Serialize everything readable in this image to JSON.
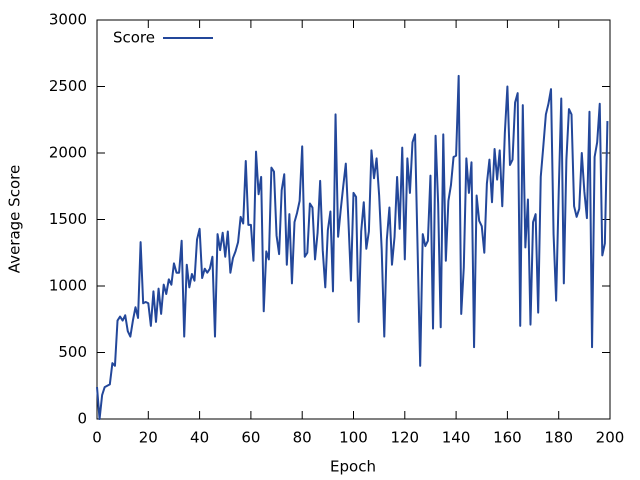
{
  "chart_data": {
    "type": "line",
    "xlabel": "Epoch",
    "ylabel": "Average Score",
    "xlim": [
      0,
      200
    ],
    "xticks": [
      0,
      20,
      40,
      60,
      80,
      100,
      120,
      140,
      160,
      180,
      200
    ],
    "ylim": [
      0,
      3000
    ],
    "yticks": [
      0,
      500,
      1000,
      1500,
      2000,
      2500,
      3000
    ],
    "legend": "top-left",
    "x": [
      0,
      1,
      2,
      3,
      4,
      5,
      6,
      7,
      8,
      9,
      10,
      11,
      12,
      13,
      14,
      15,
      16,
      17,
      18,
      19,
      20,
      21,
      22,
      23,
      24,
      25,
      26,
      27,
      28,
      29,
      30,
      31,
      32,
      33,
      34,
      35,
      36,
      37,
      38,
      39,
      40,
      41,
      42,
      43,
      44,
      45,
      46,
      47,
      48,
      49,
      50,
      51,
      52,
      53,
      54,
      55,
      56,
      57,
      58,
      59,
      60,
      61,
      62,
      63,
      64,
      65,
      66,
      67,
      68,
      69,
      70,
      71,
      72,
      73,
      74,
      75,
      76,
      77,
      78,
      79,
      80,
      81,
      82,
      83,
      84,
      85,
      86,
      87,
      88,
      89,
      90,
      91,
      92,
      93,
      94,
      95,
      96,
      97,
      98,
      99,
      100,
      101,
      102,
      103,
      104,
      105,
      106,
      107,
      108,
      109,
      110,
      111,
      112,
      113,
      114,
      115,
      116,
      117,
      118,
      119,
      120,
      121,
      122,
      123,
      124,
      125,
      126,
      127,
      128,
      129,
      130,
      131,
      132,
      133,
      134,
      135,
      136,
      137,
      138,
      139,
      140,
      141,
      142,
      143,
      144,
      145,
      146,
      147,
      148,
      149,
      150,
      151,
      152,
      153,
      154,
      155,
      156,
      157,
      158,
      159,
      160,
      161,
      162,
      163,
      164,
      165,
      166,
      167,
      168,
      169,
      170,
      171,
      172,
      173,
      174,
      175,
      176,
      177,
      178,
      179,
      180,
      181,
      182,
      183,
      184,
      185,
      186,
      187,
      188,
      189,
      190,
      191,
      192,
      193,
      194,
      195,
      196,
      197,
      198,
      199
    ],
    "series": [
      {
        "name": "Score",
        "color": "#23479a",
        "values": [
          240,
          0,
          180,
          240,
          250,
          260,
          420,
          400,
          740,
          770,
          740,
          780,
          660,
          620,
          740,
          840,
          760,
          1330,
          870,
          880,
          870,
          700,
          960,
          730,
          980,
          790,
          1010,
          940,
          1050,
          1010,
          1170,
          1100,
          1100,
          1340,
          620,
          1160,
          990,
          1090,
          1040,
          1350,
          1430,
          1060,
          1130,
          1100,
          1130,
          1220,
          620,
          1390,
          1270,
          1400,
          1220,
          1410,
          1100,
          1210,
          1260,
          1330,
          1520,
          1470,
          1940,
          1460,
          1460,
          1190,
          2010,
          1690,
          1820,
          810,
          1260,
          1200,
          1890,
          1860,
          1380,
          1240,
          1720,
          1840,
          1160,
          1540,
          1020,
          1480,
          1550,
          1640,
          2050,
          1220,
          1250,
          1620,
          1590,
          1200,
          1400,
          1790,
          1270,
          990,
          1420,
          1560,
          960,
          2290,
          1370,
          1570,
          1750,
          1920,
          1500,
          1040,
          1700,
          1670,
          730,
          1410,
          1630,
          1280,
          1410,
          2020,
          1810,
          1960,
          1680,
          1270,
          620,
          1350,
          1590,
          1160,
          1370,
          1820,
          1430,
          2040,
          1200,
          1960,
          1700,
          2080,
          2140,
          1270,
          400,
          1390,
          1300,
          1340,
          1830,
          680,
          2130,
          1620,
          690,
          2140,
          1190,
          1640,
          1760,
          1970,
          1980,
          2580,
          790,
          1140,
          1960,
          1700,
          1930,
          540,
          1680,
          1490,
          1450,
          1250,
          1770,
          1950,
          1630,
          2030,
          1800,
          2020,
          1600,
          2150,
          2500,
          1910,
          1950,
          2380,
          2450,
          700,
          2360,
          1290,
          1650,
          710,
          1480,
          1540,
          800,
          1820,
          2050,
          2290,
          2370,
          2480,
          1390,
          890,
          1700,
          2410,
          1020,
          1950,
          2330,
          2290,
          1600,
          1520,
          1580,
          2000,
          1710,
          1510,
          2310,
          540,
          1970,
          2080,
          2370,
          1230,
          1320,
          2240
        ]
      }
    ]
  }
}
